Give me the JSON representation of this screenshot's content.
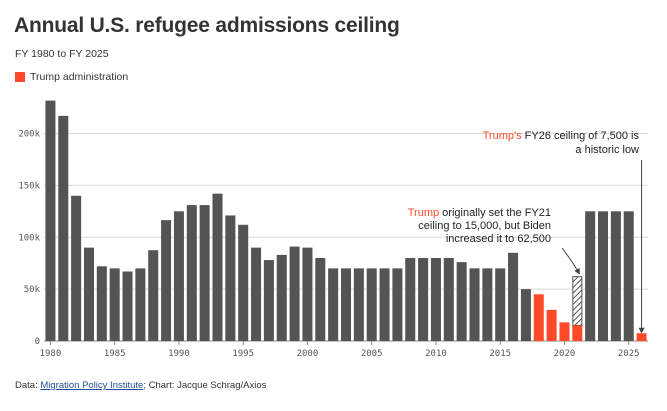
{
  "title": "Annual U.S. refugee admissions ceiling",
  "subtitle": "FY 1980 to FY 2025",
  "legend": {
    "label": "Trump administration",
    "color": "#ff4a2a"
  },
  "footer": {
    "data_prefix": "Data: ",
    "source_link": "Migration Policy Institute",
    "credit": "; Chart: Jacque Schrag/Axios"
  },
  "chart_data": {
    "type": "bar",
    "title": "Annual U.S. refugee admissions ceiling",
    "xlabel": "",
    "ylabel": "",
    "ylim": [
      0,
      240000
    ],
    "yticks": [
      0,
      50000,
      100000,
      150000,
      200000
    ],
    "ytick_labels": [
      "0",
      "50k",
      "100k",
      "150k",
      "200k"
    ],
    "xticks": [
      1980,
      1985,
      1990,
      1995,
      2000,
      2005,
      2010,
      2015,
      2020,
      2025
    ],
    "gridlines": true,
    "colors": {
      "default": "#545454",
      "trump": "#ff4a2a",
      "hatched": "#545454"
    },
    "bars": [
      {
        "year": 1980,
        "value": 231700,
        "group": "default"
      },
      {
        "year": 1981,
        "value": 217000,
        "group": "default"
      },
      {
        "year": 1982,
        "value": 140000,
        "group": "default"
      },
      {
        "year": 1983,
        "value": 90000,
        "group": "default"
      },
      {
        "year": 1984,
        "value": 72000,
        "group": "default"
      },
      {
        "year": 1985,
        "value": 70000,
        "group": "default"
      },
      {
        "year": 1986,
        "value": 67000,
        "group": "default"
      },
      {
        "year": 1987,
        "value": 70000,
        "group": "default"
      },
      {
        "year": 1988,
        "value": 87500,
        "group": "default"
      },
      {
        "year": 1989,
        "value": 116500,
        "group": "default"
      },
      {
        "year": 1990,
        "value": 125000,
        "group": "default"
      },
      {
        "year": 1991,
        "value": 131000,
        "group": "default"
      },
      {
        "year": 1992,
        "value": 131000,
        "group": "default"
      },
      {
        "year": 1993,
        "value": 142000,
        "group": "default"
      },
      {
        "year": 1994,
        "value": 121000,
        "group": "default"
      },
      {
        "year": 1995,
        "value": 112000,
        "group": "default"
      },
      {
        "year": 1996,
        "value": 90000,
        "group": "default"
      },
      {
        "year": 1997,
        "value": 78000,
        "group": "default"
      },
      {
        "year": 1998,
        "value": 83000,
        "group": "default"
      },
      {
        "year": 1999,
        "value": 91000,
        "group": "default"
      },
      {
        "year": 2000,
        "value": 90000,
        "group": "default"
      },
      {
        "year": 2001,
        "value": 80000,
        "group": "default"
      },
      {
        "year": 2002,
        "value": 70000,
        "group": "default"
      },
      {
        "year": 2003,
        "value": 70000,
        "group": "default"
      },
      {
        "year": 2004,
        "value": 70000,
        "group": "default"
      },
      {
        "year": 2005,
        "value": 70000,
        "group": "default"
      },
      {
        "year": 2006,
        "value": 70000,
        "group": "default"
      },
      {
        "year": 2007,
        "value": 70000,
        "group": "default"
      },
      {
        "year": 2008,
        "value": 80000,
        "group": "default"
      },
      {
        "year": 2009,
        "value": 80000,
        "group": "default"
      },
      {
        "year": 2010,
        "value": 80000,
        "group": "default"
      },
      {
        "year": 2011,
        "value": 80000,
        "group": "default"
      },
      {
        "year": 2012,
        "value": 76000,
        "group": "default"
      },
      {
        "year": 2013,
        "value": 70000,
        "group": "default"
      },
      {
        "year": 2014,
        "value": 70000,
        "group": "default"
      },
      {
        "year": 2015,
        "value": 70000,
        "group": "default"
      },
      {
        "year": 2016,
        "value": 85000,
        "group": "default"
      },
      {
        "year": 2017,
        "value": 50000,
        "group": "default"
      },
      {
        "year": 2018,
        "value": 45000,
        "group": "trump"
      },
      {
        "year": 2019,
        "value": 30000,
        "group": "trump"
      },
      {
        "year": 2020,
        "value": 18000,
        "group": "trump"
      },
      {
        "year": 2021,
        "value": 15000,
        "group": "trump",
        "hatched_to": 62500
      },
      {
        "year": 2022,
        "value": 125000,
        "group": "default"
      },
      {
        "year": 2023,
        "value": 125000,
        "group": "default"
      },
      {
        "year": 2024,
        "value": 125000,
        "group": "default"
      },
      {
        "year": 2025,
        "value": 125000,
        "group": "default"
      },
      {
        "year": 2026,
        "value": 7500,
        "group": "trump"
      }
    ],
    "annotations": [
      {
        "id": "fy21",
        "highlight": "Trump",
        "lines": [
          " originally set the FY21",
          "ceiling to 15,000, but Biden",
          "increased it to 62,500"
        ],
        "target_year": 2021
      },
      {
        "id": "fy26",
        "highlight": "Trump's",
        "lines": [
          " FY26 ceiling of 7,500 is",
          "a historic low"
        ],
        "target_year": 2026
      }
    ]
  }
}
